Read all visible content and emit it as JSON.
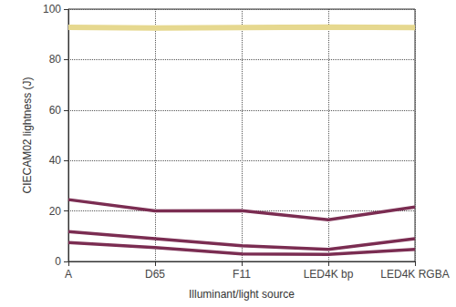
{
  "chart_data": {
    "type": "line",
    "x_label": "Illuminant/light source",
    "y_label": "CIECAM02 lightness (J)",
    "categories": [
      "A",
      "D65",
      "F11",
      "LED4K bp",
      "LED4K RGBA"
    ],
    "series": [
      {
        "color": "#e6d88f",
        "values": [
          92.8,
          92.5,
          92.7,
          92.9,
          92.7
        ]
      },
      {
        "color": "#7b2d52",
        "values": [
          24.5,
          20.0,
          20.1,
          16.5,
          21.6
        ]
      },
      {
        "color": "#7b2d52",
        "values": [
          11.8,
          9.0,
          6.2,
          4.8,
          9.0
        ]
      },
      {
        "color": "#7b2d52",
        "values": [
          7.5,
          5.5,
          3.0,
          2.8,
          4.8
        ]
      }
    ],
    "ylim": [
      0,
      100
    ],
    "yticks": [
      0,
      20,
      40,
      60,
      80,
      100
    ],
    "grid": true
  }
}
